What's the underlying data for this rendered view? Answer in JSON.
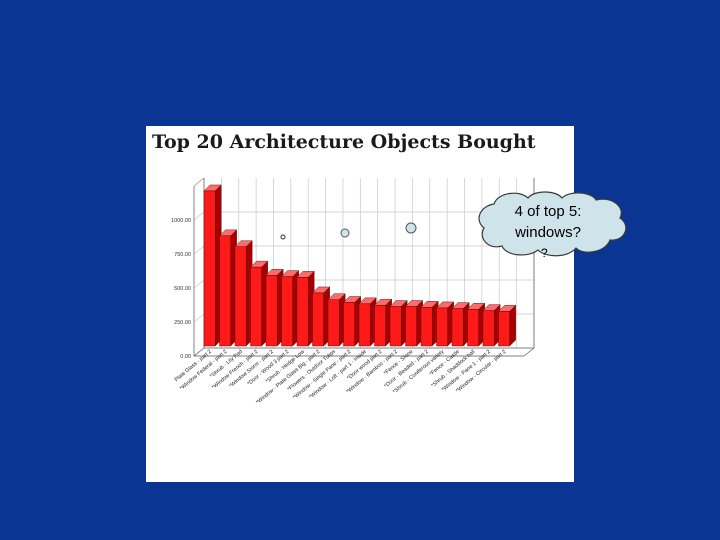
{
  "slide": {
    "background": "#0a3592",
    "callout_line1": "4 of top 5:",
    "callout_line2": "windows?",
    "callout_extra": "?"
  },
  "chart_data": {
    "type": "bar",
    "title": "Top 20 Architecture Objects Bought",
    "bar_color": "#ff1a1a",
    "grid": true,
    "ylim": [
      0,
      1250
    ],
    "yticks": [
      "0.00",
      "250.00",
      "500.00",
      "750.00",
      "1000.00"
    ],
    "categories": [
      "Plate Glass - part 2",
      "*Window Federal - part 2",
      "*Shrub - Lily Pad",
      "*Window French - part 2",
      "*Window Storm - part 2",
      "*Door - Wood 3 part 2",
      "*Shrub - Hedge Low",
      "*Window - Plate Glass Big - part 2",
      "*Flowers - Outdoor Tulips",
      "*Window - Single Pane - part 2",
      "*Window - Loft - part 1 - Inside",
      "*Door wood part 2",
      "*Window - Bamboo - part 2",
      "*Fence - Stone",
      "*Door - Beaded - part 2",
      "*Shrub - Coniferous variety",
      "*Fence - Castle",
      "*Shrub - Shaddock ball",
      "*Window - Pane 1 - part 2",
      "*Window - Circular - part 2"
    ],
    "values": [
      1140,
      810,
      730,
      580,
      520,
      510,
      505,
      390,
      340,
      320,
      310,
      300,
      290,
      290,
      285,
      280,
      275,
      270,
      260,
      255
    ]
  }
}
